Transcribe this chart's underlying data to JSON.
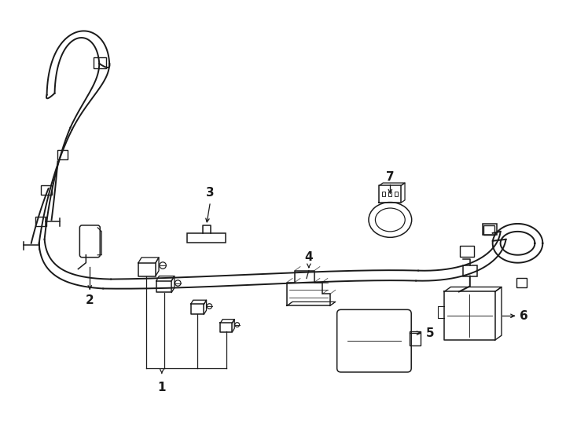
{
  "background_color": "#ffffff",
  "line_color": "#1a1a1a",
  "harness_lw": 1.4,
  "comp_lw": 1.1,
  "label_fontsize": 11
}
